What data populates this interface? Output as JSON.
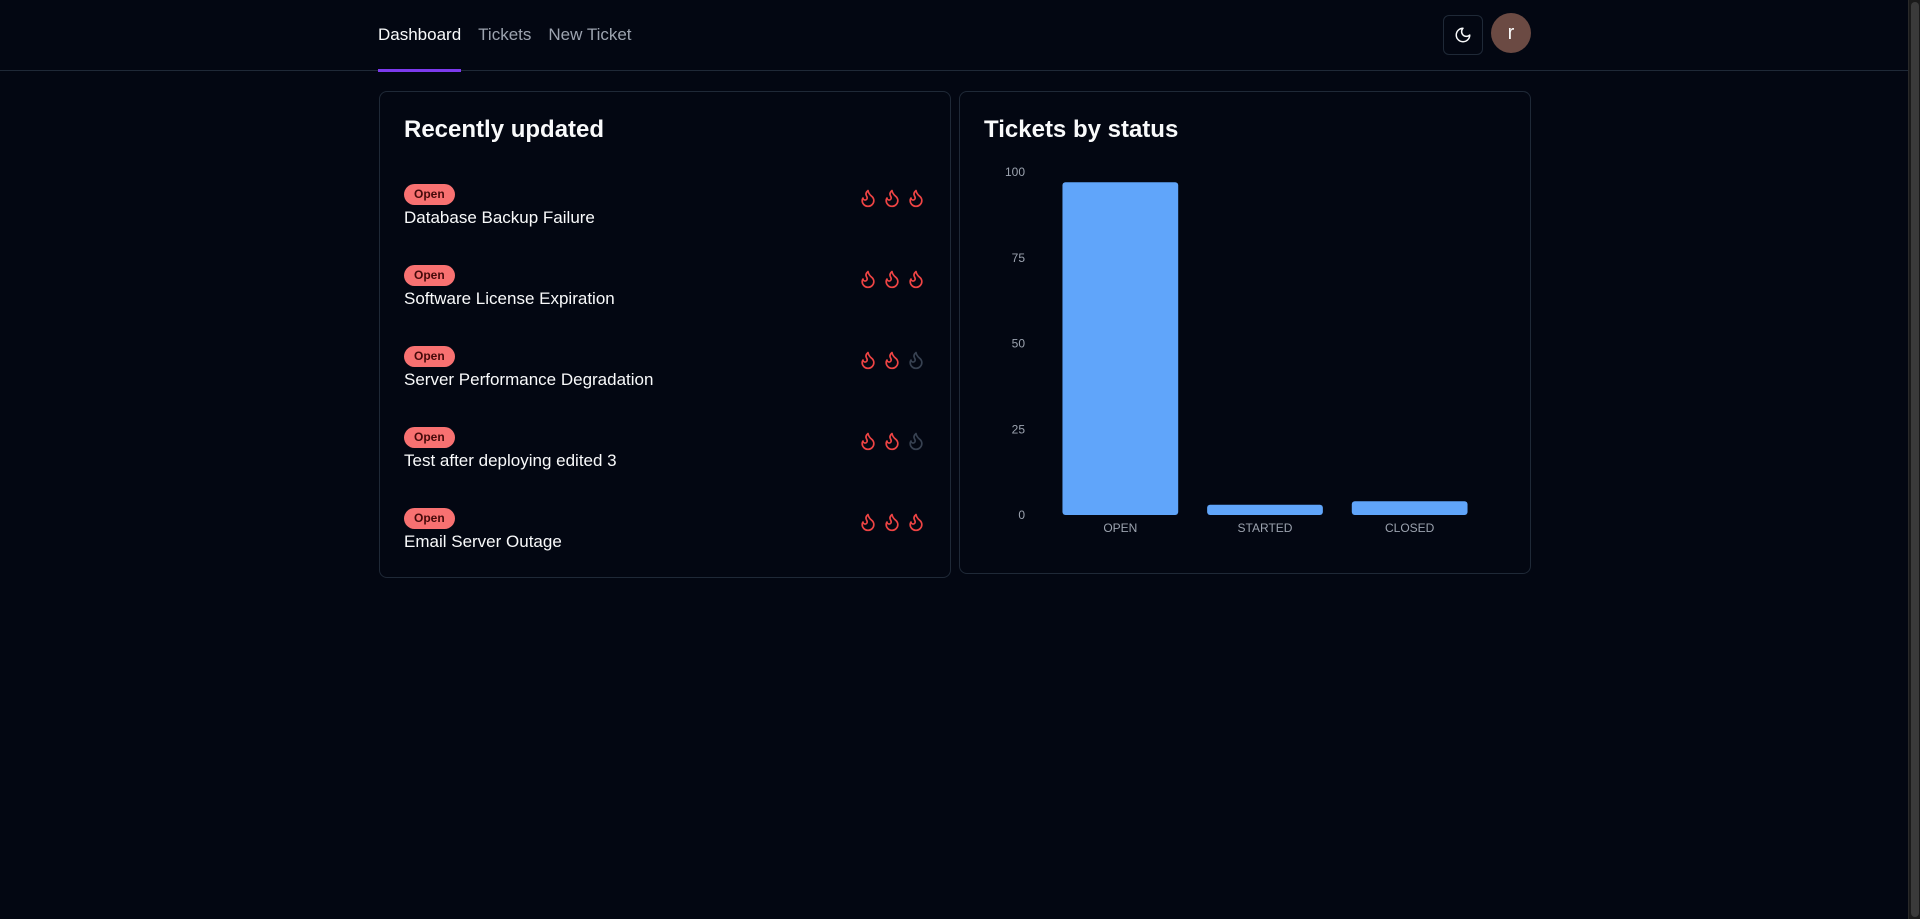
{
  "nav": {
    "tabs": [
      {
        "label": "Dashboard",
        "active": true
      },
      {
        "label": "Tickets",
        "active": false
      },
      {
        "label": "New Ticket",
        "active": false
      }
    ]
  },
  "header": {
    "theme_icon": "moon-icon",
    "avatar_initial": "r"
  },
  "recent": {
    "title": "Recently updated",
    "tickets": [
      {
        "status": "Open",
        "title": "Database Backup Failure",
        "priority": 3
      },
      {
        "status": "Open",
        "title": "Software License Expiration",
        "priority": 3
      },
      {
        "status": "Open",
        "title": "Server Performance Degradation",
        "priority": 2
      },
      {
        "status": "Open",
        "title": "Test after deploying edited 3",
        "priority": 2
      },
      {
        "status": "Open",
        "title": "Email Server Outage",
        "priority": 3
      }
    ],
    "max_priority": 3
  },
  "status_chart": {
    "title": "Tickets by status"
  },
  "colors": {
    "accent": "#7c3aed",
    "badge_bg": "#f87171",
    "flame_active": "#ef4444",
    "flame_inactive": "#374151",
    "bar": "#60a5fa"
  },
  "chart_data": {
    "type": "bar",
    "categories": [
      "OPEN",
      "STARTED",
      "CLOSED"
    ],
    "values": [
      97,
      3,
      4
    ],
    "ylim": [
      0,
      100
    ],
    "yticks": [
      "0",
      "25",
      "50",
      "75",
      "100"
    ],
    "grid": false,
    "legend": "none"
  }
}
